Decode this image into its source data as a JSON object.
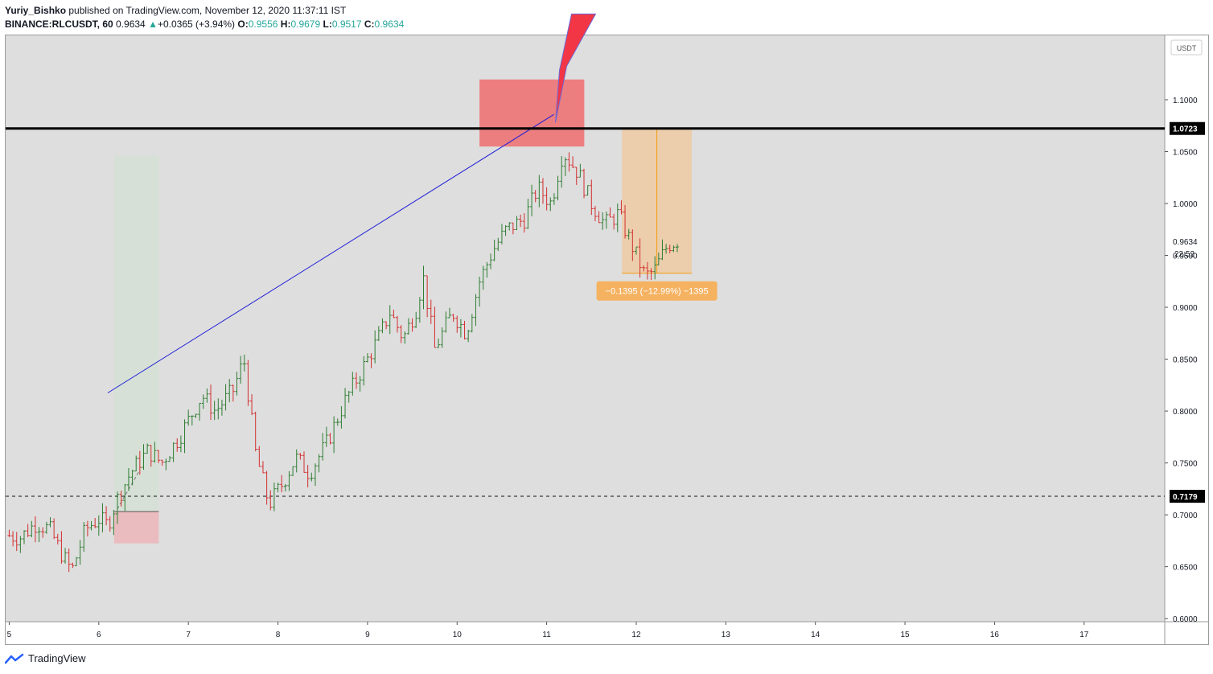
{
  "header": {
    "author": "Yuriy_Bishko",
    "published_text": "published on TradingView.com, November 12, 2020 11:37:11 IST",
    "symbol": "BINANCE:RLCUSDT, 60",
    "last": "0.9634",
    "change": "+0.0365 (+3.94%)",
    "o_label": "O:",
    "o_value": "0.9556",
    "h_label": "H:",
    "h_value": "0.9679",
    "l_label": "L:",
    "l_value": "0.9517",
    "c_label": "C:",
    "c_value": "0.9634"
  },
  "footer": {
    "brand": "TradingView"
  },
  "colors": {
    "up": "#26a69a",
    "bar_up": "#2e7d32",
    "bar_down": "#d32f2f",
    "resistance_zone": "#ec7e80",
    "measure_fill": "#f0c89c",
    "measure_line": "#f39c12",
    "trendline": "#1f1fd6",
    "arrow": "#f23645",
    "bg": "#dedede",
    "axis_bg": "#ffffff"
  },
  "chart_data": {
    "type": "ohlc",
    "currency": "USDT",
    "x_ticks": [
      "5",
      "6",
      "7",
      "8",
      "9",
      "10",
      "11",
      "12",
      "13",
      "14",
      "15",
      "16",
      "17"
    ],
    "y_ticks": [
      "1.1000",
      "1.0500",
      "1.0000",
      "0.9500",
      "0.9000",
      "0.8500",
      "0.8000",
      "0.7500",
      "0.7000",
      "0.6500",
      "0.6000"
    ],
    "ylim": [
      0.597,
      1.162
    ],
    "xlim": [
      4.96,
      17.9
    ],
    "resistance_level": {
      "value": 1.0723,
      "label": "1.0723"
    },
    "support_level": {
      "value": 0.7179,
      "label": "0.7179"
    },
    "last_price": {
      "value": 0.9634,
      "label": "0.9634",
      "countdown": "22:52"
    },
    "measure": {
      "text": "−0.1395 (−12.99%) −1395",
      "from": 1.0723,
      "to": 0.9328,
      "x_start": 11.84,
      "x_end": 12.62
    },
    "resistance_zone": {
      "x_start": 10.25,
      "x_end": 11.42,
      "y_low": 1.0549,
      "y_high": 1.1195
    },
    "trendline": {
      "x1": 6.1,
      "y1": 0.8175,
      "x2": 11.08,
      "y2": 1.0858
    },
    "long_position": {
      "x_start": 6.17,
      "x_end": 6.67,
      "entry": 0.7032,
      "target": 1.0463,
      "stop": 0.6725
    },
    "path": [
      [
        5.0,
        0.68
      ],
      [
        5.12,
        0.678
      ],
      [
        5.3,
        0.692
      ],
      [
        5.45,
        0.686
      ],
      [
        5.6,
        0.66
      ],
      [
        5.7,
        0.646
      ],
      [
        5.85,
        0.686
      ],
      [
        6.0,
        0.696
      ],
      [
        6.1,
        0.69
      ],
      [
        6.2,
        0.714
      ],
      [
        6.35,
        0.74
      ],
      [
        6.55,
        0.762
      ],
      [
        6.7,
        0.75
      ],
      [
        6.9,
        0.775
      ],
      [
        7.15,
        0.815
      ],
      [
        7.3,
        0.8
      ],
      [
        7.5,
        0.82
      ],
      [
        7.62,
        0.85
      ],
      [
        7.75,
        0.76
      ],
      [
        7.9,
        0.71
      ],
      [
        8.05,
        0.73
      ],
      [
        8.2,
        0.755
      ],
      [
        8.35,
        0.74
      ],
      [
        8.55,
        0.77
      ],
      [
        8.75,
        0.81
      ],
      [
        9.0,
        0.85
      ],
      [
        9.12,
        0.87
      ],
      [
        9.25,
        0.895
      ],
      [
        9.4,
        0.87
      ],
      [
        9.55,
        0.9
      ],
      [
        9.62,
        0.93
      ],
      [
        9.75,
        0.86
      ],
      [
        9.95,
        0.895
      ],
      [
        10.1,
        0.875
      ],
      [
        10.25,
        0.925
      ],
      [
        10.4,
        0.955
      ],
      [
        10.55,
        0.975
      ],
      [
        10.75,
        0.985
      ],
      [
        10.9,
        1.015
      ],
      [
        11.05,
        1.0
      ],
      [
        11.18,
        1.05
      ],
      [
        11.35,
        1.03
      ],
      [
        11.5,
        1.0
      ],
      [
        11.65,
        0.98
      ],
      [
        11.8,
        0.99
      ],
      [
        11.95,
        0.96
      ],
      [
        12.1,
        0.93
      ],
      [
        12.2,
        0.935
      ],
      [
        12.35,
        0.96
      ],
      [
        12.48,
        0.965
      ]
    ]
  }
}
